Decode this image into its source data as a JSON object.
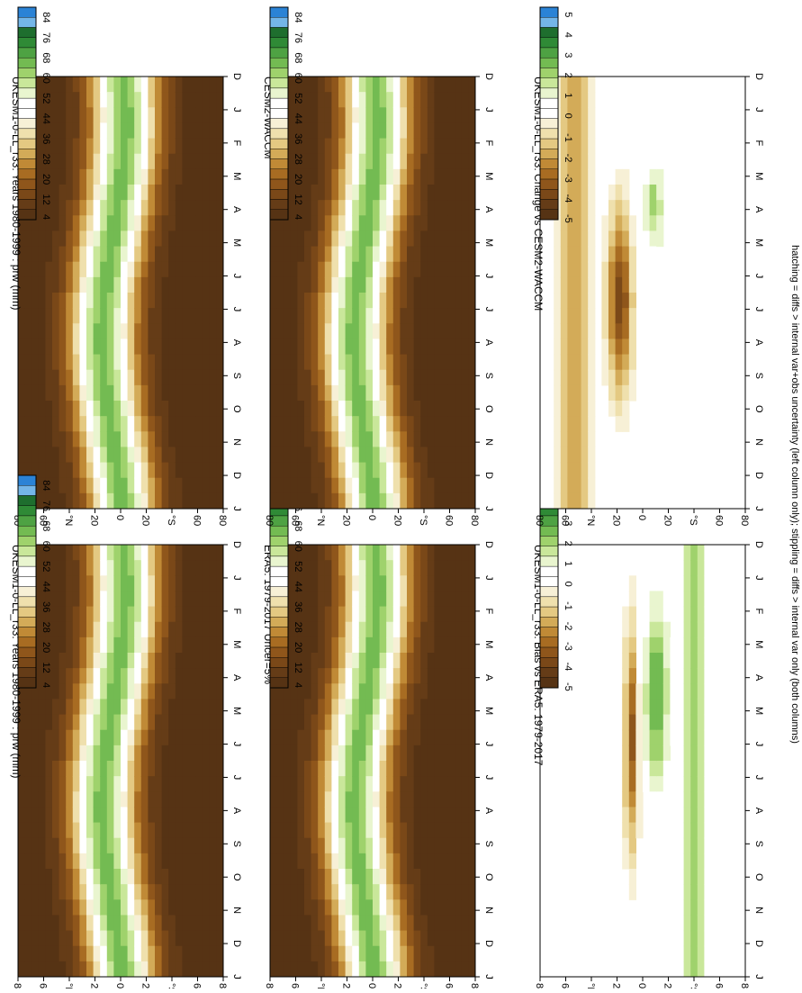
{
  "footnote": "hatching = diffs > internal var+obs uncertainty (left column only); stippling = diffs > internal var only (both columns)",
  "months": [
    "D",
    "J",
    "F",
    "M",
    "A",
    "M",
    "J",
    "J",
    "A",
    "S",
    "O",
    "N",
    "D",
    "J"
  ],
  "lat_ticks": [
    "80",
    "60",
    "°N",
    "20",
    "0",
    "20",
    "°S",
    "60",
    "80"
  ],
  "abs_scale": {
    "labels": [
      "84",
      "76",
      "68",
      "60",
      "52",
      "44",
      "36",
      "28",
      "20",
      "12",
      "4"
    ],
    "colors": [
      "#2b83d6",
      "#74b6e8",
      "#1e6e2e",
      "#2f8a36",
      "#4ea243",
      "#73bb52",
      "#9fd26c",
      "#c9e79a",
      "#e9f5cf",
      "#ffffff",
      "#ffffff",
      "#f7f0d6",
      "#efe0ad",
      "#e4c982",
      "#d3ab58",
      "#c08a36",
      "#a86c22",
      "#8f561b",
      "#7a4818",
      "#653c17",
      "#563314"
    ]
  },
  "diff_scale": {
    "labels": [
      "5",
      "4",
      "3",
      "2",
      "1",
      "0",
      "-1",
      "-2",
      "-3",
      "-4",
      "-5"
    ],
    "colors": [
      "#2b83d6",
      "#74b6e8",
      "#1e6e2e",
      "#2f8a36",
      "#4ea243",
      "#73bb52",
      "#9fd26c",
      "#c9e79a",
      "#e9f5cf",
      "#ffffff",
      "#ffffff",
      "#f7f0d6",
      "#efe0ad",
      "#e4c982",
      "#d3ab58",
      "#c08a36",
      "#a86c22",
      "#8f561b",
      "#7a4818",
      "#653c17",
      "#563314"
    ]
  },
  "panels": [
    {
      "title": "UKESM1-0-LL_r33: Years 1980-1999 : prw (mm)",
      "kind": "abs",
      "scale": "abs"
    },
    {
      "title": "UKESM1-0-LL_r33: Years 1980-1999 : prw (mm)",
      "kind": "abs",
      "scale": "abs"
    },
    {
      "title": "ERA5: 1979-2017 Uncer=5%",
      "kind": "abs",
      "scale": "abs"
    },
    {
      "title": "CESM2-WACCM",
      "kind": "abs",
      "scale": "abs"
    },
    {
      "title": "UKESM1-0-LL_r33: Bias vs ERA5: 1979-2017",
      "kind": "bias",
      "scale": "diff"
    },
    {
      "title": "UKESM1-0-LL_r33: Change vs CESM2-WACCM",
      "kind": "change",
      "scale": "diff"
    }
  ],
  "chart_data": [
    {
      "type": "heatmap",
      "title": "UKESM1-0-LL_r33: Years 1980-1999 : prw (mm)",
      "x": [
        "D",
        "J",
        "F",
        "M",
        "A",
        "M",
        "J",
        "J",
        "A",
        "S",
        "O",
        "N",
        "D",
        "J"
      ],
      "y_ticks": [
        "80",
        "60",
        "°N",
        "20",
        "0",
        "20",
        "°S",
        "60",
        "80"
      ],
      "levels": [
        4,
        12,
        20,
        28,
        36,
        44,
        52,
        60,
        68,
        76,
        84
      ],
      "note": "precipitable water climatology; maximum ~52-60 mm near 5-15°N, minimum 4 mm at high latitudes"
    },
    {
      "type": "heatmap",
      "title": "UKESM1-0-LL_r33: Years 1980-1999 : prw (mm)",
      "x": [
        "D",
        "J",
        "F",
        "M",
        "A",
        "M",
        "J",
        "J",
        "A",
        "S",
        "O",
        "N",
        "D",
        "J"
      ],
      "y_ticks": [
        "80",
        "60",
        "°N",
        "20",
        "0",
        "20",
        "°S",
        "60",
        "80"
      ],
      "levels": [
        4,
        12,
        20,
        28,
        36,
        44,
        52,
        60,
        68,
        76,
        84
      ]
    },
    {
      "type": "heatmap",
      "title": "ERA5: 1979-2017 Uncer=5%",
      "x": [
        "D",
        "J",
        "F",
        "M",
        "A",
        "M",
        "J",
        "J",
        "A",
        "S",
        "O",
        "N",
        "D",
        "J"
      ],
      "y_ticks": [
        "80",
        "60",
        "°N",
        "20",
        "0",
        "20",
        "°S",
        "60",
        "80"
      ],
      "levels": [
        4,
        12,
        20,
        28,
        36,
        44,
        52,
        60,
        68,
        76,
        84
      ]
    },
    {
      "type": "heatmap",
      "title": "CESM2-WACCM",
      "x": [
        "D",
        "J",
        "F",
        "M",
        "A",
        "M",
        "J",
        "J",
        "A",
        "S",
        "O",
        "N",
        "D",
        "J"
      ],
      "y_ticks": [
        "80",
        "60",
        "°N",
        "20",
        "0",
        "20",
        "°S",
        "60",
        "80"
      ],
      "levels": [
        4,
        12,
        20,
        28,
        36,
        44,
        52,
        60,
        68,
        76,
        84
      ]
    },
    {
      "type": "heatmap",
      "title": "UKESM1-0-LL_r33: Bias vs ERA5: 1979-2017",
      "x": [
        "D",
        "J",
        "F",
        "M",
        "A",
        "M",
        "J",
        "J",
        "A",
        "S",
        "O",
        "N",
        "D",
        "J"
      ],
      "y_ticks": [
        "80",
        "60",
        "°N",
        "20",
        "0",
        "20",
        "°S",
        "60",
        "80"
      ],
      "levels": [
        -5,
        -4,
        -3,
        -2,
        -1,
        0,
        1,
        2,
        3,
        4,
        5
      ]
    },
    {
      "type": "heatmap",
      "title": "UKESM1-0-LL_r33: Change vs CESM2-WACCM",
      "x": [
        "D",
        "J",
        "F",
        "M",
        "A",
        "M",
        "J",
        "J",
        "A",
        "S",
        "O",
        "N",
        "D",
        "J"
      ],
      "y_ticks": [
        "80",
        "60",
        "°N",
        "20",
        "0",
        "20",
        "°S",
        "60",
        "80"
      ],
      "levels": [
        -5,
        -4,
        -3,
        -2,
        -1,
        0,
        1,
        2,
        3,
        4,
        5
      ]
    }
  ]
}
